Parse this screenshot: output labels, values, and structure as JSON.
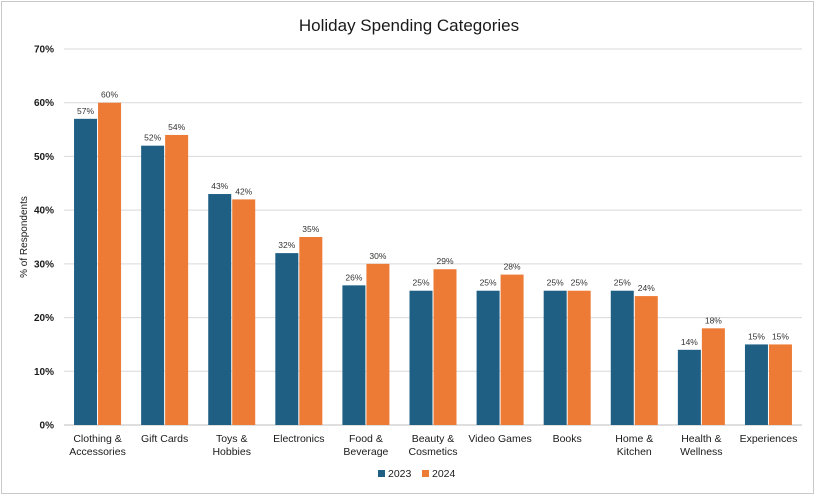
{
  "chart_data": {
    "type": "bar",
    "title": "Holiday Spending Categories",
    "xlabel": "",
    "ylabel": "% of Respondents",
    "ylim": [
      0,
      70
    ],
    "yticks": [
      0,
      10,
      20,
      30,
      40,
      50,
      60,
      70
    ],
    "ytick_format": "%",
    "grid": true,
    "legend_position": "bottom",
    "categories": [
      [
        "Clothing &",
        "Accessories"
      ],
      [
        "Gift Cards"
      ],
      [
        "Toys &",
        "Hobbies"
      ],
      [
        "Electronics"
      ],
      [
        "Food &",
        "Beverage"
      ],
      [
        "Beauty &",
        "Cosmetics"
      ],
      [
        "Video Games"
      ],
      [
        "Books"
      ],
      [
        "Home &",
        "Kitchen"
      ],
      [
        "Health &",
        "Wellness"
      ],
      [
        "Experiences"
      ]
    ],
    "series": [
      {
        "name": "2023",
        "color": "#1f5f84",
        "values": [
          57,
          52,
          43,
          32,
          26,
          25,
          25,
          25,
          25,
          14,
          15
        ],
        "labels": [
          "57%",
          "52%",
          "43%",
          "32%",
          "26%",
          "25%",
          "25%",
          "25%",
          "25%",
          "14%",
          "15%"
        ]
      },
      {
        "name": "2024",
        "color": "#ee7b35",
        "values": [
          60,
          54,
          42,
          35,
          30,
          29,
          28,
          25,
          24,
          18,
          15
        ],
        "labels": [
          "60%",
          "54%",
          "42%",
          "35%",
          "30%",
          "29%",
          "28%",
          "25%",
          "24%",
          "18%",
          "15%"
        ]
      }
    ]
  }
}
